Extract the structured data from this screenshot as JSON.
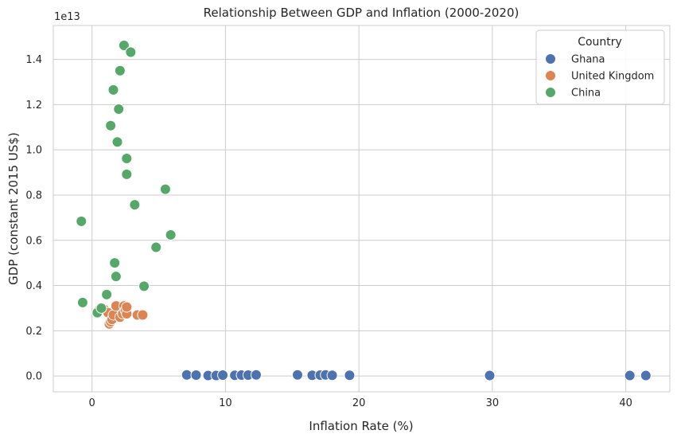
{
  "chart_data": {
    "type": "scatter",
    "title": "Relationship Between GDP and Inflation (2000-2020)",
    "xlabel": "Inflation Rate (%)",
    "ylabel": "GDP (constant 2015 US$)",
    "y_offset_label": "1e13",
    "xlim": [
      -2.9,
      43.3
    ],
    "ylim": [
      -0.07,
      1.55
    ],
    "x_ticks": [
      0,
      10,
      20,
      30,
      40
    ],
    "y_ticks": [
      0.0,
      0.2,
      0.4,
      0.6,
      0.8,
      1.0,
      1.2,
      1.4
    ],
    "x_tick_labels": [
      "0",
      "10",
      "20",
      "30",
      "40"
    ],
    "y_tick_labels": [
      "0.0",
      "0.2",
      "0.4",
      "0.6",
      "0.8",
      "1.0",
      "1.2",
      "1.4"
    ],
    "grid": true,
    "legend": {
      "title": "Country",
      "placement": "top-right"
    },
    "series": [
      {
        "name": "Ghana",
        "color": "#4c72b0",
        "points": [
          [
            7.1,
            0.005
          ],
          [
            7.8,
            0.004
          ],
          [
            8.7,
            0.002
          ],
          [
            9.3,
            0.002
          ],
          [
            9.8,
            0.004
          ],
          [
            10.7,
            0.003
          ],
          [
            11.2,
            0.004
          ],
          [
            11.7,
            0.004
          ],
          [
            12.3,
            0.005
          ],
          [
            15.4,
            0.005
          ],
          [
            16.5,
            0.003
          ],
          [
            17.1,
            0.004
          ],
          [
            17.5,
            0.005
          ],
          [
            18.0,
            0.003
          ],
          [
            19.3,
            0.003
          ],
          [
            29.8,
            0.002
          ],
          [
            40.3,
            0.002
          ],
          [
            41.5,
            0.002
          ]
        ]
      },
      {
        "name": "United Kingdom",
        "color": "#dd8452",
        "points": [
          [
            0.5,
            0.29
          ],
          [
            0.9,
            0.295
          ],
          [
            1.2,
            0.28
          ],
          [
            1.3,
            0.23
          ],
          [
            1.4,
            0.24
          ],
          [
            1.5,
            0.25
          ],
          [
            1.6,
            0.27
          ],
          [
            1.8,
            0.31
          ],
          [
            2.1,
            0.26
          ],
          [
            2.3,
            0.275
          ],
          [
            2.4,
            0.31
          ],
          [
            2.5,
            0.29
          ],
          [
            2.6,
            0.275
          ],
          [
            2.6,
            0.305
          ],
          [
            3.4,
            0.27
          ],
          [
            3.8,
            0.27
          ]
        ]
      },
      {
        "name": "China",
        "color": "#55a868",
        "points": [
          [
            -0.8,
            0.684
          ],
          [
            -0.7,
            0.325
          ],
          [
            0.4,
            0.28
          ],
          [
            0.7,
            0.3
          ],
          [
            1.1,
            0.36
          ],
          [
            1.4,
            1.107
          ],
          [
            1.6,
            1.265
          ],
          [
            1.7,
            0.5
          ],
          [
            1.8,
            0.44
          ],
          [
            1.9,
            1.035
          ],
          [
            2.0,
            1.18
          ],
          [
            2.1,
            1.35
          ],
          [
            2.4,
            1.462
          ],
          [
            2.6,
            0.962
          ],
          [
            2.6,
            0.892
          ],
          [
            2.9,
            1.432
          ],
          [
            3.2,
            0.757
          ],
          [
            3.9,
            0.397
          ],
          [
            4.8,
            0.569
          ],
          [
            5.5,
            0.826
          ],
          [
            5.9,
            0.624
          ]
        ]
      }
    ]
  }
}
